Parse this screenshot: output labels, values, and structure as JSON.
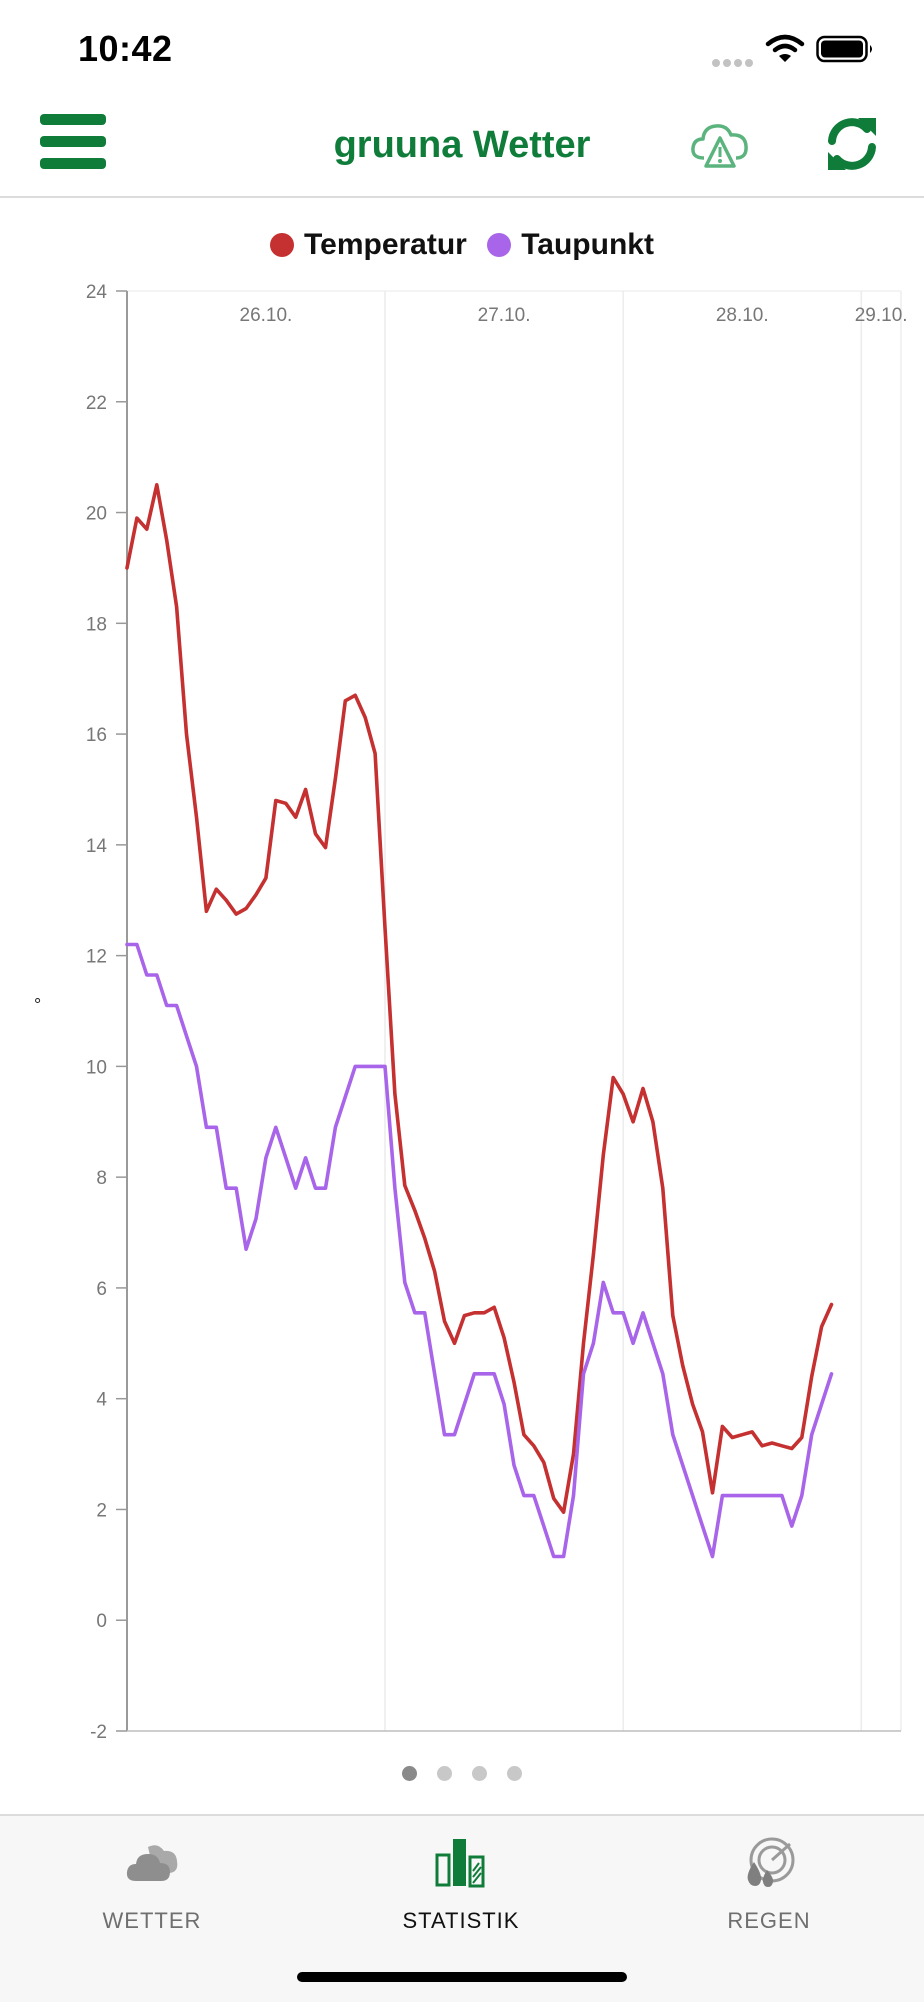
{
  "status_bar": {
    "time": "10:42"
  },
  "header": {
    "title": "gruuna Wetter",
    "title_color": "#0f7c3a",
    "menu_icon": "hamburger-menu-icon",
    "alert_icon": "cloud-warning-icon",
    "refresh_icon": "refresh-icon"
  },
  "chart_data": {
    "type": "line",
    "x_type": "datetime",
    "x_range": [
      "2023-10-25 22:00",
      "2023-10-29 04:00"
    ],
    "day_ticks": [
      {
        "label": "26.10.",
        "x": "2023-10-26 00:00"
      },
      {
        "label": "27.10.",
        "x": "2023-10-27 00:00"
      },
      {
        "label": "28.10.",
        "x": "2023-10-28 00:00"
      },
      {
        "label": "29.10.",
        "x": "2023-10-29 00:00"
      }
    ],
    "ylabel": "°",
    "ylim": [
      -2,
      24
    ],
    "yticks": [
      24,
      22,
      20,
      18,
      16,
      14,
      12,
      10,
      8,
      6,
      4,
      2,
      0,
      -2
    ],
    "grid": "vertical-day-lines",
    "legend_position": "top-center",
    "series": [
      {
        "name": "Temperatur",
        "color": "#c53030",
        "points": [
          [
            "2023-10-25 22:00",
            19.0
          ],
          [
            "2023-10-25 23:00",
            19.9
          ],
          [
            "2023-10-26 00:00",
            19.7
          ],
          [
            "2023-10-26 01:00",
            20.5
          ],
          [
            "2023-10-26 02:00",
            19.5
          ],
          [
            "2023-10-26 03:00",
            18.3
          ],
          [
            "2023-10-26 04:00",
            16.0
          ],
          [
            "2023-10-26 05:00",
            14.5
          ],
          [
            "2023-10-26 06:00",
            12.8
          ],
          [
            "2023-10-26 07:00",
            13.2
          ],
          [
            "2023-10-26 08:00",
            13.0
          ],
          [
            "2023-10-26 09:00",
            12.75
          ],
          [
            "2023-10-26 10:00",
            12.85
          ],
          [
            "2023-10-26 11:00",
            13.1
          ],
          [
            "2023-10-26 12:00",
            13.4
          ],
          [
            "2023-10-26 13:00",
            14.8
          ],
          [
            "2023-10-26 14:00",
            14.75
          ],
          [
            "2023-10-26 15:00",
            14.5
          ],
          [
            "2023-10-26 16:00",
            15.0
          ],
          [
            "2023-10-26 17:00",
            14.2
          ],
          [
            "2023-10-26 18:00",
            13.95
          ],
          [
            "2023-10-26 19:00",
            15.2
          ],
          [
            "2023-10-26 20:00",
            16.6
          ],
          [
            "2023-10-26 21:00",
            16.7
          ],
          [
            "2023-10-26 22:00",
            16.3
          ],
          [
            "2023-10-26 23:00",
            15.65
          ],
          [
            "2023-10-27 00:00",
            12.5
          ],
          [
            "2023-10-27 01:00",
            9.5
          ],
          [
            "2023-10-27 02:00",
            7.85
          ],
          [
            "2023-10-27 03:00",
            7.4
          ],
          [
            "2023-10-27 04:00",
            6.9
          ],
          [
            "2023-10-27 05:00",
            6.3
          ],
          [
            "2023-10-27 06:00",
            5.4
          ],
          [
            "2023-10-27 07:00",
            5.0
          ],
          [
            "2023-10-27 08:00",
            5.5
          ],
          [
            "2023-10-27 09:00",
            5.55
          ],
          [
            "2023-10-27 10:00",
            5.55
          ],
          [
            "2023-10-27 11:00",
            5.65
          ],
          [
            "2023-10-27 12:00",
            5.1
          ],
          [
            "2023-10-27 13:00",
            4.3
          ],
          [
            "2023-10-27 14:00",
            3.35
          ],
          [
            "2023-10-27 15:00",
            3.15
          ],
          [
            "2023-10-27 16:00",
            2.85
          ],
          [
            "2023-10-27 17:00",
            2.2
          ],
          [
            "2023-10-27 18:00",
            1.95
          ],
          [
            "2023-10-27 19:00",
            3.0
          ],
          [
            "2023-10-27 20:00",
            5.0
          ],
          [
            "2023-10-27 21:00",
            6.6
          ],
          [
            "2023-10-27 22:00",
            8.4
          ],
          [
            "2023-10-27 23:00",
            9.8
          ],
          [
            "2023-10-28 00:00",
            9.5
          ],
          [
            "2023-10-28 01:00",
            9.0
          ],
          [
            "2023-10-28 02:00",
            9.6
          ],
          [
            "2023-10-28 03:00",
            9.0
          ],
          [
            "2023-10-28 04:00",
            7.8
          ],
          [
            "2023-10-28 05:00",
            5.5
          ],
          [
            "2023-10-28 06:00",
            4.6
          ],
          [
            "2023-10-28 07:00",
            3.9
          ],
          [
            "2023-10-28 08:00",
            3.4
          ],
          [
            "2023-10-28 09:00",
            2.3
          ],
          [
            "2023-10-28 10:00",
            3.5
          ],
          [
            "2023-10-28 11:00",
            3.3
          ],
          [
            "2023-10-28 12:00",
            3.35
          ],
          [
            "2023-10-28 13:00",
            3.4
          ],
          [
            "2023-10-28 14:00",
            3.15
          ],
          [
            "2023-10-28 15:00",
            3.2
          ],
          [
            "2023-10-28 16:00",
            3.15
          ],
          [
            "2023-10-28 17:00",
            3.1
          ],
          [
            "2023-10-28 18:00",
            3.3
          ],
          [
            "2023-10-28 19:00",
            4.4
          ],
          [
            "2023-10-28 20:00",
            5.3
          ],
          [
            "2023-10-28 21:00",
            5.7
          ]
        ]
      },
      {
        "name": "Taupunkt",
        "color": "#a865ea",
        "points": [
          [
            "2023-10-25 22:00",
            12.2
          ],
          [
            "2023-10-25 23:00",
            12.2
          ],
          [
            "2023-10-26 00:00",
            11.65
          ],
          [
            "2023-10-26 01:00",
            11.65
          ],
          [
            "2023-10-26 02:00",
            11.1
          ],
          [
            "2023-10-26 03:00",
            11.1
          ],
          [
            "2023-10-26 04:00",
            10.55
          ],
          [
            "2023-10-26 05:00",
            10.0
          ],
          [
            "2023-10-26 06:00",
            8.9
          ],
          [
            "2023-10-26 07:00",
            8.9
          ],
          [
            "2023-10-26 08:00",
            7.8
          ],
          [
            "2023-10-26 09:00",
            7.8
          ],
          [
            "2023-10-26 10:00",
            6.7
          ],
          [
            "2023-10-26 11:00",
            7.25
          ],
          [
            "2023-10-26 12:00",
            8.35
          ],
          [
            "2023-10-26 13:00",
            8.9
          ],
          [
            "2023-10-26 14:00",
            8.35
          ],
          [
            "2023-10-26 15:00",
            7.8
          ],
          [
            "2023-10-26 16:00",
            8.35
          ],
          [
            "2023-10-26 17:00",
            7.8
          ],
          [
            "2023-10-26 18:00",
            7.8
          ],
          [
            "2023-10-26 19:00",
            8.9
          ],
          [
            "2023-10-26 20:00",
            9.45
          ],
          [
            "2023-10-26 21:00",
            10.0
          ],
          [
            "2023-10-26 22:00",
            10.0
          ],
          [
            "2023-10-26 23:00",
            10.0
          ],
          [
            "2023-10-27 00:00",
            10.0
          ],
          [
            "2023-10-27 01:00",
            7.8
          ],
          [
            "2023-10-27 02:00",
            6.1
          ],
          [
            "2023-10-27 03:00",
            5.55
          ],
          [
            "2023-10-27 04:00",
            5.55
          ],
          [
            "2023-10-27 05:00",
            4.45
          ],
          [
            "2023-10-27 06:00",
            3.35
          ],
          [
            "2023-10-27 07:00",
            3.35
          ],
          [
            "2023-10-27 08:00",
            3.9
          ],
          [
            "2023-10-27 09:00",
            4.45
          ],
          [
            "2023-10-27 10:00",
            4.45
          ],
          [
            "2023-10-27 11:00",
            4.45
          ],
          [
            "2023-10-27 12:00",
            3.9
          ],
          [
            "2023-10-27 13:00",
            2.8
          ],
          [
            "2023-10-27 14:00",
            2.25
          ],
          [
            "2023-10-27 15:00",
            2.25
          ],
          [
            "2023-10-27 16:00",
            1.7
          ],
          [
            "2023-10-27 17:00",
            1.15
          ],
          [
            "2023-10-27 18:00",
            1.15
          ],
          [
            "2023-10-27 19:00",
            2.25
          ],
          [
            "2023-10-27 20:00",
            4.45
          ],
          [
            "2023-10-27 21:00",
            5.0
          ],
          [
            "2023-10-27 22:00",
            6.1
          ],
          [
            "2023-10-27 23:00",
            5.55
          ],
          [
            "2023-10-28 00:00",
            5.55
          ],
          [
            "2023-10-28 01:00",
            5.0
          ],
          [
            "2023-10-28 02:00",
            5.55
          ],
          [
            "2023-10-28 03:00",
            5.0
          ],
          [
            "2023-10-28 04:00",
            4.45
          ],
          [
            "2023-10-28 05:00",
            3.35
          ],
          [
            "2023-10-28 06:00",
            2.8
          ],
          [
            "2023-10-28 07:00",
            2.25
          ],
          [
            "2023-10-28 08:00",
            1.7
          ],
          [
            "2023-10-28 09:00",
            1.15
          ],
          [
            "2023-10-28 10:00",
            2.25
          ],
          [
            "2023-10-28 11:00",
            2.25
          ],
          [
            "2023-10-28 12:00",
            2.25
          ],
          [
            "2023-10-28 13:00",
            2.25
          ],
          [
            "2023-10-28 14:00",
            2.25
          ],
          [
            "2023-10-28 15:00",
            2.25
          ],
          [
            "2023-10-28 16:00",
            2.25
          ],
          [
            "2023-10-28 17:00",
            1.7
          ],
          [
            "2023-10-28 18:00",
            2.25
          ],
          [
            "2023-10-28 19:00",
            3.35
          ],
          [
            "2023-10-28 20:00",
            3.9
          ],
          [
            "2023-10-28 21:00",
            4.45
          ]
        ]
      }
    ]
  },
  "pager": {
    "count": 4,
    "active": 1
  },
  "tabs": [
    {
      "label": "WETTER",
      "icon": "cloud-icon",
      "active": false
    },
    {
      "label": "STATISTIK",
      "icon": "bar-chart-icon",
      "active": true
    },
    {
      "label": "REGEN",
      "icon": "rain-radar-icon",
      "active": false
    }
  ]
}
